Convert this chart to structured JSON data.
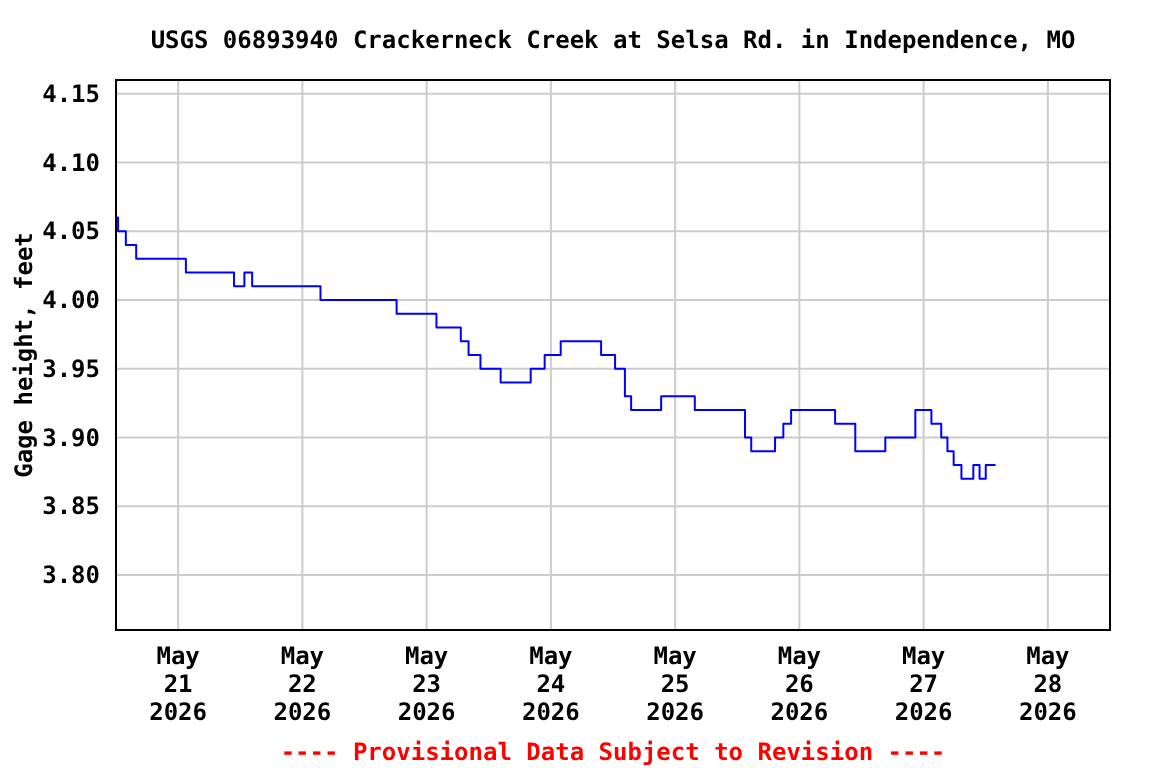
{
  "chart_data": {
    "type": "step",
    "title": "USGS 06893940 Crackerneck Creek at Selsa Rd. in Independence, MO",
    "ylabel": "Gage height, feet",
    "x": [
      "2026-05-20T12:00",
      "2026-05-20T12:24",
      "2026-05-20T13:54",
      "2026-05-20T15:54",
      "2026-05-21T01:30",
      "2026-05-21T10:48",
      "2026-05-21T12:48",
      "2026-05-21T14:18",
      "2026-05-22T03:30",
      "2026-05-22T18:12",
      "2026-05-23T01:54",
      "2026-05-23T06:36",
      "2026-05-23T08:06",
      "2026-05-23T10:24",
      "2026-05-23T14:18",
      "2026-05-23T20:06",
      "2026-05-23T22:48",
      "2026-05-24T01:54",
      "2026-05-24T09:42",
      "2026-05-24T12:24",
      "2026-05-24T14:18",
      "2026-05-24T15:30",
      "2026-05-24T21:18",
      "2026-05-25T03:48",
      "2026-05-25T13:30",
      "2026-05-25T14:42",
      "2026-05-25T19:18",
      "2026-05-25T20:54",
      "2026-05-25T22:24",
      "2026-05-26T06:54",
      "2026-05-26T10:48",
      "2026-05-26T16:36",
      "2026-05-26T22:24",
      "2026-05-27T01:30",
      "2026-05-27T03:24",
      "2026-05-27T04:36",
      "2026-05-27T05:48",
      "2026-05-27T07:18",
      "2026-05-27T09:36",
      "2026-05-27T10:48",
      "2026-05-27T12:00",
      "2026-05-27T13:54"
    ],
    "series": [
      {
        "color": "#0000ff",
        "values": [
          4.06,
          4.05,
          4.04,
          4.03,
          4.02,
          4.01,
          4.02,
          4.01,
          4.0,
          3.99,
          3.98,
          3.97,
          3.96,
          3.95,
          3.94,
          3.95,
          3.96,
          3.97,
          3.96,
          3.95,
          3.93,
          3.92,
          3.93,
          3.92,
          3.9,
          3.89,
          3.9,
          3.91,
          3.92,
          3.91,
          3.89,
          3.9,
          3.92,
          3.91,
          3.9,
          3.89,
          3.88,
          3.87,
          3.88,
          3.87,
          3.88,
          3.88
        ]
      }
    ],
    "xlim": [
      "2026-05-20T12:00",
      "2026-05-28T12:00"
    ],
    "xticks": [
      {
        "value": "2026-05-21",
        "label": "May 21 2026"
      },
      {
        "value": "2026-05-22",
        "label": "May 22 2026"
      },
      {
        "value": "2026-05-23",
        "label": "May 23 2026"
      },
      {
        "value": "2026-05-24",
        "label": "May 24 2026"
      },
      {
        "value": "2026-05-25",
        "label": "May 25 2026"
      },
      {
        "value": "2026-05-26",
        "label": "May 26 2026"
      },
      {
        "value": "2026-05-27",
        "label": "May 27 2026"
      },
      {
        "value": "2026-05-28",
        "label": "May 28 2026"
      }
    ],
    "ylim": [
      3.76,
      4.16
    ],
    "yticks": [
      {
        "value": 3.8,
        "label": "3.80"
      },
      {
        "value": 3.85,
        "label": "3.85"
      },
      {
        "value": 3.9,
        "label": "3.90"
      },
      {
        "value": 3.95,
        "label": "3.95"
      },
      {
        "value": 4.0,
        "label": "4.00"
      },
      {
        "value": 4.05,
        "label": "4.05"
      },
      {
        "value": 4.1,
        "label": "4.10"
      },
      {
        "value": 4.15,
        "label": "4.15"
      }
    ],
    "grid": true,
    "annotations": [
      "---- Provisional Data Subject to Revision ----"
    ]
  }
}
